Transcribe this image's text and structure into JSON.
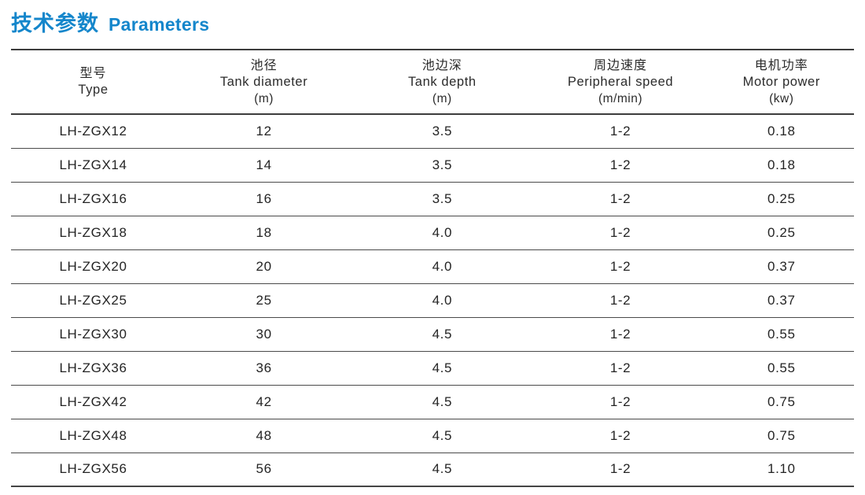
{
  "page_title": {
    "zh": "技术参数",
    "en": "Parameters"
  },
  "colors": {
    "accent": "#1486cb",
    "rule_heavy": "#3c3c3c",
    "rule_light": "#4a4a4a",
    "text": "#2b2b2b",
    "background": "#ffffff"
  },
  "table": {
    "columns": [
      {
        "zh": "型号",
        "en": "Type",
        "unit": ""
      },
      {
        "zh": "池径",
        "en": "Tank diameter",
        "unit": "(m)"
      },
      {
        "zh": "池边深",
        "en": "Tank depth",
        "unit": "(m)"
      },
      {
        "zh": "周边速度",
        "en": "Peripheral speed",
        "unit": "(m/min)"
      },
      {
        "zh": "电机功率",
        "en": "Motor power",
        "unit": "(kw)"
      }
    ],
    "rows": [
      [
        "LH-ZGX12",
        "12",
        "3.5",
        "1-2",
        "0.18"
      ],
      [
        "LH-ZGX14",
        "14",
        "3.5",
        "1-2",
        "0.18"
      ],
      [
        "LH-ZGX16",
        "16",
        "3.5",
        "1-2",
        "0.25"
      ],
      [
        "LH-ZGX18",
        "18",
        "4.0",
        "1-2",
        "0.25"
      ],
      [
        "LH-ZGX20",
        "20",
        "4.0",
        "1-2",
        "0.37"
      ],
      [
        "LH-ZGX25",
        "25",
        "4.0",
        "1-2",
        "0.37"
      ],
      [
        "LH-ZGX30",
        "30",
        "4.5",
        "1-2",
        "0.55"
      ],
      [
        "LH-ZGX36",
        "36",
        "4.5",
        "1-2",
        "0.55"
      ],
      [
        "LH-ZGX42",
        "42",
        "4.5",
        "1-2",
        "0.75"
      ],
      [
        "LH-ZGX48",
        "48",
        "4.5",
        "1-2",
        "0.75"
      ],
      [
        "LH-ZGX56",
        "56",
        "4.5",
        "1-2",
        "1.10"
      ]
    ]
  }
}
